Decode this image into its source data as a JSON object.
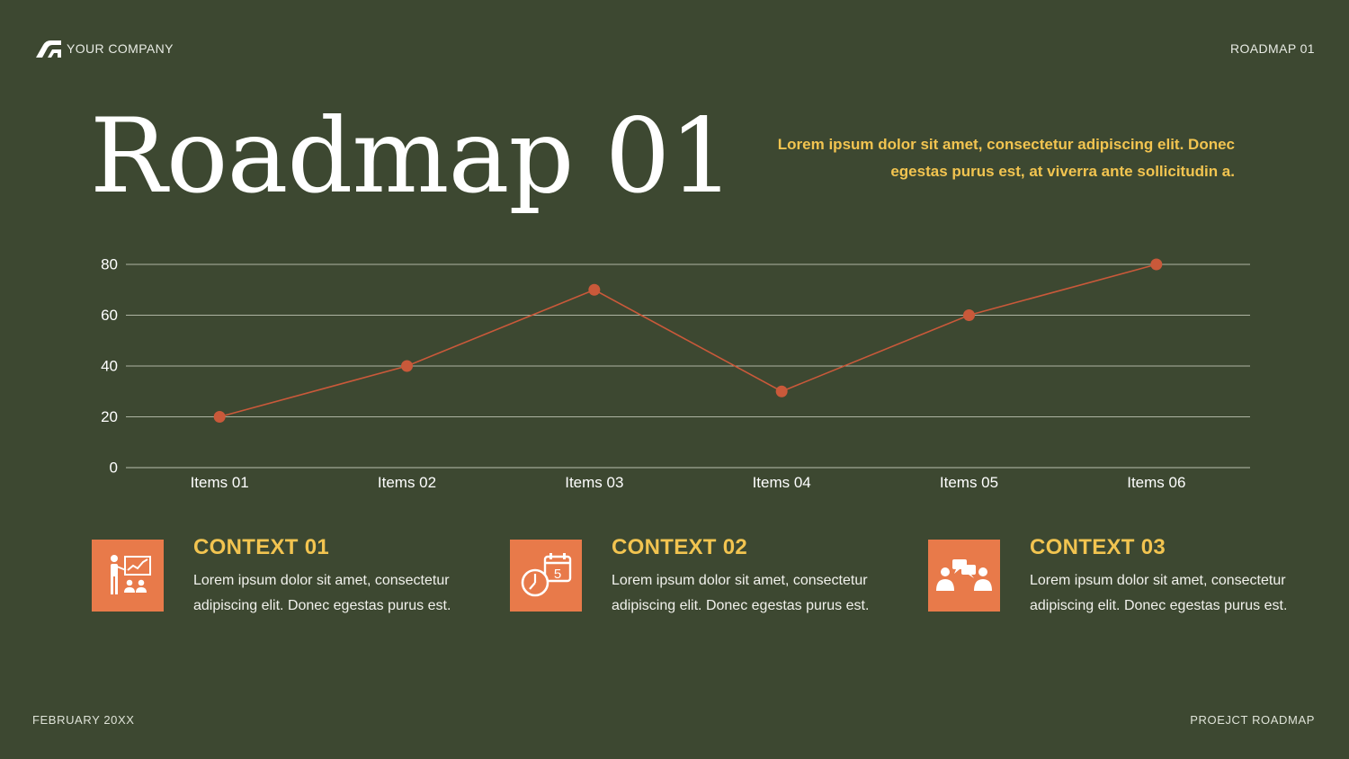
{
  "header": {
    "company": "YOUR COMPANY",
    "slide_label": "ROADMAP 01"
  },
  "title": "Roadmap 01",
  "subtitle": "Lorem ipsum dolor sit amet, consectetur adipiscing elit. Donec egestas purus est, at viverra ante sollicitudin a.",
  "colors": {
    "background": "#3d4831",
    "accent": "#e87a4a",
    "highlight": "#f2c450",
    "line": "#c9593a"
  },
  "chart_data": {
    "type": "line",
    "categories": [
      "Items 01",
      "Items 02",
      "Items 03",
      "Items 04",
      "Items 05",
      "Items 06"
    ],
    "series": [
      {
        "values": [
          20,
          40,
          70,
          30,
          60,
          80
        ]
      }
    ],
    "ylim": [
      0,
      80
    ],
    "yticks": [
      0,
      20,
      40,
      60,
      80
    ],
    "grid": true,
    "legend": "none"
  },
  "contexts": [
    {
      "icon": "presentation-icon",
      "title": "CONTEXT 01",
      "body": "Lorem ipsum dolor sit amet, consectetur adipiscing elit. Donec egestas purus est."
    },
    {
      "icon": "clock-calendar-icon",
      "title": "CONTEXT 02",
      "body": "Lorem ipsum dolor sit amet, consectetur adipiscing elit. Donec egestas purus est.",
      "calendar_day": "5"
    },
    {
      "icon": "meeting-icon",
      "title": "CONTEXT 03",
      "body": "Lorem ipsum dolor sit amet, consectetur adipiscing elit. Donec egestas purus est."
    }
  ],
  "footer": {
    "date": "FEBRUARY 20XX",
    "project": "PROEJCT ROADMAP"
  }
}
